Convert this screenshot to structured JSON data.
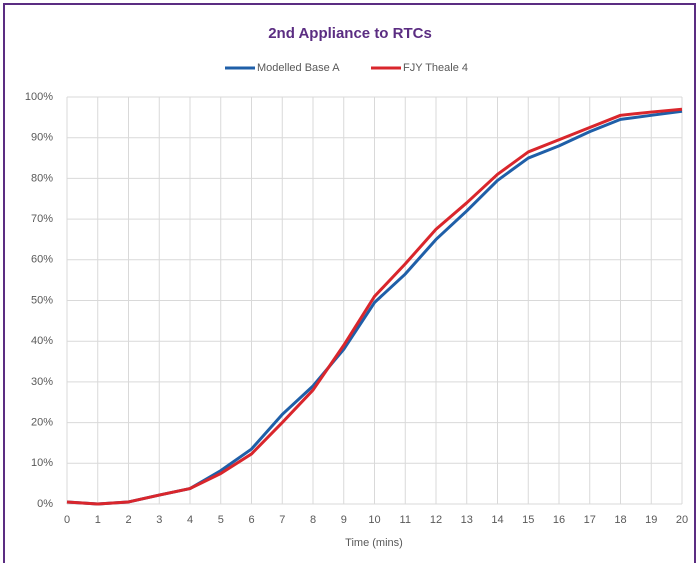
{
  "chart_data": {
    "type": "line",
    "title": "2nd Appliance to RTCs",
    "xlabel": "Time (mins)",
    "x": [
      0,
      1,
      2,
      3,
      4,
      5,
      6,
      7,
      8,
      9,
      10,
      11,
      12,
      13,
      14,
      15,
      16,
      17,
      18,
      19,
      20
    ],
    "series": [
      {
        "name": "Modelled Base A",
        "color": "#1f5fa8",
        "values": [
          0.5,
          0,
          0.5,
          2.2,
          3.8,
          8.2,
          13.5,
          22,
          29,
          38,
          49.5,
          56.5,
          65,
          72,
          79.5,
          85,
          88,
          91.5,
          94.5,
          95.5,
          96.5
        ]
      },
      {
        "name": "FJY Theale 4",
        "color": "#d9262c",
        "values": [
          0.5,
          0,
          0.5,
          2.2,
          3.8,
          7.5,
          12.3,
          20,
          28,
          39,
          51,
          59,
          67.5,
          74,
          81,
          86.5,
          89.5,
          92.5,
          95.5,
          96.3,
          97
        ]
      }
    ],
    "xlim": [
      0,
      20
    ],
    "xticks": [
      0,
      1,
      2,
      3,
      4,
      5,
      6,
      7,
      8,
      9,
      10,
      11,
      12,
      13,
      14,
      15,
      16,
      17,
      18,
      19,
      20
    ],
    "ylim": [
      0,
      100
    ],
    "yticks": [
      {
        "value": 0,
        "label": "0%"
      },
      {
        "value": 10,
        "label": "10%"
      },
      {
        "value": 20,
        "label": "20%"
      },
      {
        "value": 30,
        "label": "30%"
      },
      {
        "value": 40,
        "label": "40%"
      },
      {
        "value": 50,
        "label": "50%"
      },
      {
        "value": 60,
        "label": "60%"
      },
      {
        "value": 70,
        "label": "70%"
      },
      {
        "value": 80,
        "label": "80%"
      },
      {
        "value": 90,
        "label": "90%"
      },
      {
        "value": 100,
        "label": "100%"
      }
    ],
    "grid": true,
    "legend": "top"
  }
}
